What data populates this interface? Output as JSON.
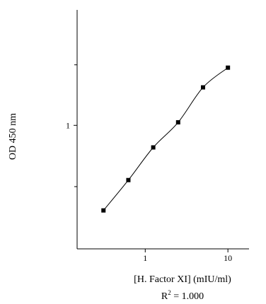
{
  "chart_data": {
    "type": "scatter",
    "xlabel": "[H. Factor XI] (mIU/ml)",
    "ylabel": "OD 450 nm",
    "x_scale": "log",
    "y_scale": "log",
    "xlim": [
      0.15,
      18
    ],
    "ylim": [
      0.2,
      4.5
    ],
    "x_ticks": [
      1,
      10
    ],
    "x_tick_labels": [
      "1",
      "10"
    ],
    "y_ticks": [
      1
    ],
    "y_tick_labels": [
      "1"
    ],
    "y_minor_ticks": [
      0.45,
      2.2
    ],
    "grid": false,
    "series": [
      {
        "x": [
          0.3125,
          0.625,
          1.25,
          2.5,
          5,
          10
        ],
        "y": [
          0.33,
          0.49,
          0.75,
          1.04,
          1.64,
          2.12
        ],
        "marker": "square",
        "line": "smooth-fit"
      }
    ],
    "annotation": {
      "base": "R",
      "superscript": "2",
      "rest": " = 1.000"
    }
  }
}
